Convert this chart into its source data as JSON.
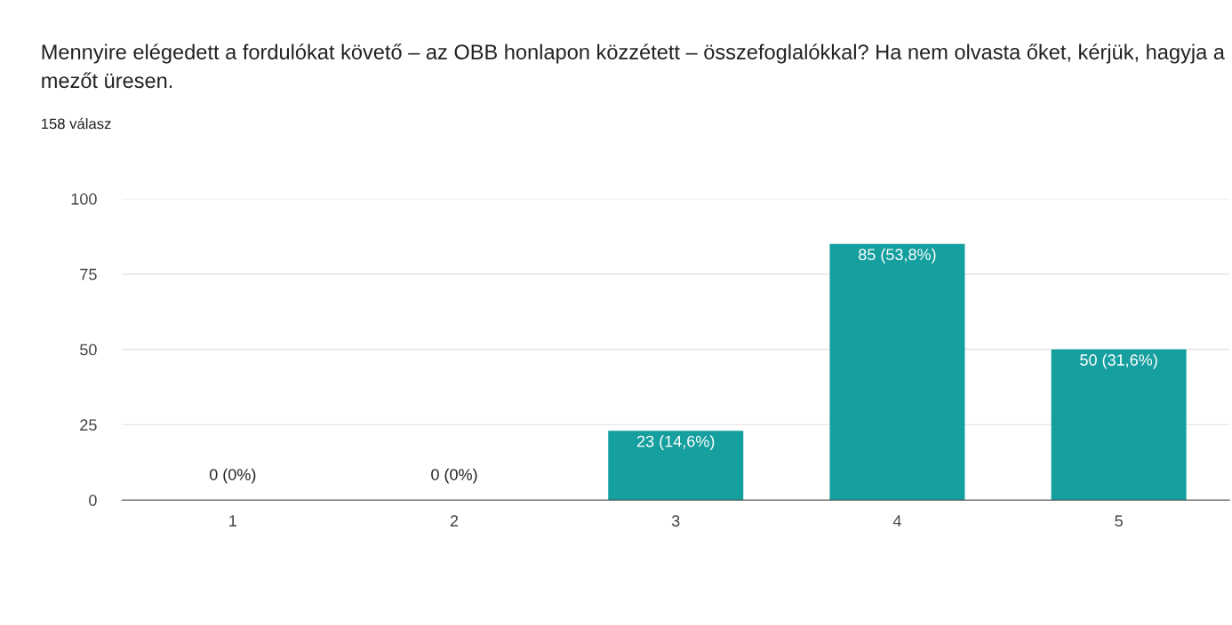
{
  "chart_data": {
    "type": "bar",
    "title": "Mennyire elégedett a fordulókat követő – az OBB honlapon közzétett – összefoglalókkal? Ha nem olvasta őket, kérjük, hagyja a mezőt üresen.",
    "subtitle": "158 válasz",
    "categories": [
      "1",
      "2",
      "3",
      "4",
      "5"
    ],
    "values": [
      0,
      0,
      23,
      85,
      50
    ],
    "value_labels": [
      "0 (0%)",
      "0 (0%)",
      "23 (14,6%)",
      "85 (53,8%)",
      "50 (31,6%)"
    ],
    "color": "#169f9f",
    "ylim": [
      0,
      100
    ],
    "yticks": [
      0,
      25,
      50,
      75,
      100
    ],
    "grid": "y",
    "legend": false
  }
}
